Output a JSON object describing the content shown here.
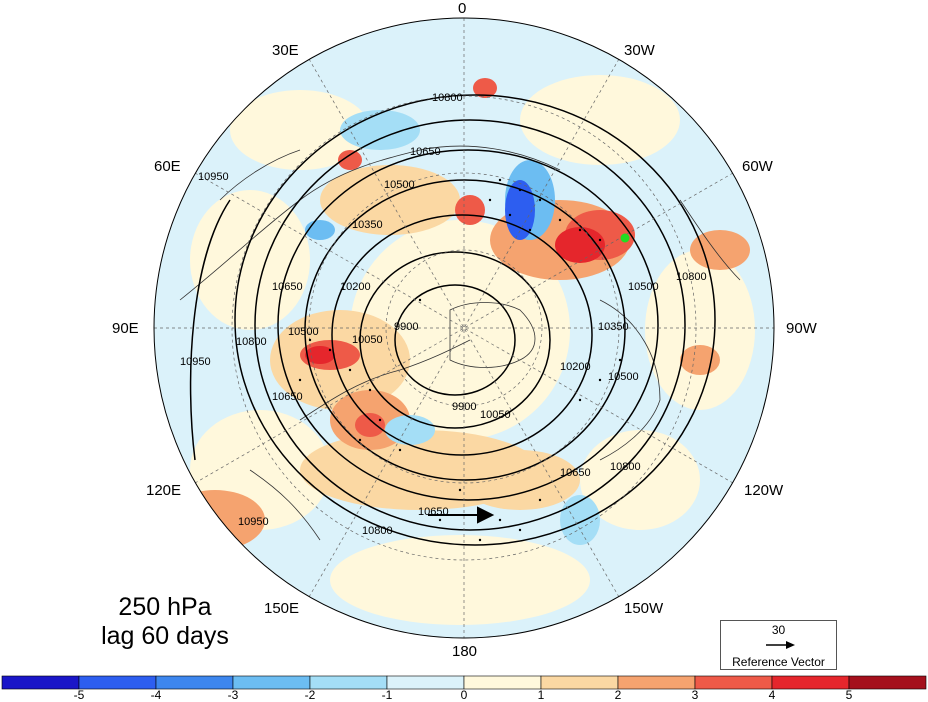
{
  "title": {
    "level": "250 hPa",
    "lag": "lag 60 days"
  },
  "longitude_labels": {
    "top": "0",
    "top_left": "30E",
    "top_right": "30W",
    "upper_left": "60E",
    "upper_right": "60W",
    "left": "90E",
    "right": "90W",
    "lower_left": "120E",
    "lower_right": "120W",
    "bottom_left": "150E",
    "bottom_right": "150W",
    "bottom": "180"
  },
  "reference_vector": {
    "value": "30",
    "label": "Reference Vector"
  },
  "colorbar": {
    "ticks": [
      "-5",
      "-4",
      "-3",
      "-2",
      "-1",
      "0",
      "1",
      "2",
      "3",
      "4",
      "5"
    ],
    "colors": [
      "#1a16c8",
      "#2d5ef0",
      "#3d86ee",
      "#6cbdf2",
      "#a4def6",
      "#dbf2fa",
      "#fff8dc",
      "#fbd8a3",
      "#f5a36f",
      "#ee5a48",
      "#e5262c",
      "#a5101c"
    ]
  },
  "contour_labels": {
    "c10800_top": "10800",
    "c10650_top": "10650",
    "c10500_top": "10500",
    "c10350_top": "10350",
    "c10200_left": "10200",
    "c10050_left": "10050",
    "c9900_center": "9900",
    "c9900_lower": "9900",
    "c10050_lower": "10050",
    "c10200_right": "10200",
    "c10350_right": "10350",
    "c10500_right": "10500",
    "c10650_right": "10650",
    "c10800_right": "10800",
    "c10800_right_upper": "10800",
    "c10650_left": "10650",
    "c10500_left": "10500",
    "c10800_left": "10800",
    "c10950_left": "10950",
    "c10950_upper_left": "10950",
    "c10650_bottom": "10650",
    "c10800_bottom": "10800",
    "c10950_bottom": "10950",
    "c10650_lower_left": "10650",
    "c10500_upper_right": "10500"
  },
  "colors": {
    "background": "#dbf2fa",
    "contour": "#000000",
    "marker": "#22dd22"
  }
}
